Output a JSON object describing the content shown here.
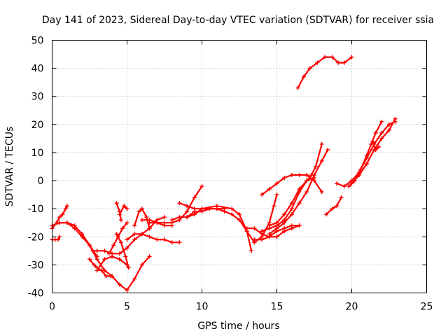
{
  "chart_data": {
    "type": "scatter",
    "title": "Day 141 of 2023, Sidereal Day-to-day VTEC variation (SDTVAR) for receiver ssia",
    "xlabel": "GPS time / hours",
    "ylabel": "SDTVAR / TECUs",
    "xlim": [
      0,
      25
    ],
    "ylim": [
      -40,
      50
    ],
    "xticks": [
      0,
      5,
      10,
      15,
      20,
      25
    ],
    "yticks": [
      -40,
      -30,
      -20,
      -10,
      0,
      10,
      20,
      30,
      40,
      50
    ],
    "grid": true,
    "marker": "+",
    "color": "#ff0000",
    "series": [
      {
        "x": [
          0.0,
          0.3,
          0.5,
          0.7,
          0.9,
          1.0
        ],
        "y": [
          -17,
          -15,
          -13,
          -12,
          -10,
          -9
        ]
      },
      {
        "x": [
          0.0,
          0.5,
          1.0,
          1.5,
          2.0,
          2.5,
          3.0
        ],
        "y": [
          -16,
          -15,
          -15,
          -17,
          -20,
          -23,
          -27
        ]
      },
      {
        "x": [
          0.0,
          0.2,
          0.4,
          0.5
        ],
        "y": [
          -21,
          -21,
          -21,
          -20
        ]
      },
      {
        "x": [
          0.5,
          1.0,
          1.5,
          2.0,
          2.5,
          3.0,
          3.5,
          4.0,
          4.5,
          5.0,
          5.5,
          6.0,
          6.5
        ],
        "y": [
          -15,
          -15,
          -16,
          -19,
          -23,
          -28,
          -32,
          -34,
          -37,
          -39,
          -35,
          -30,
          -27
        ]
      },
      {
        "x": [
          2.5,
          2.8,
          3.0,
          3.3,
          3.6,
          3.9
        ],
        "y": [
          -28,
          -30,
          -31,
          -32,
          -34,
          -34
        ]
      },
      {
        "x": [
          2.7,
          3.0,
          3.5,
          4.0,
          4.5,
          5.0,
          5.5,
          6.0,
          6.5,
          7.0,
          7.5,
          8.0,
          8.5
        ],
        "y": [
          -25,
          -25,
          -25,
          -26,
          -26,
          -24,
          -21,
          -19,
          -20,
          -21,
          -21,
          -22,
          -22
        ]
      },
      {
        "x": [
          3.0,
          3.5,
          4.0,
          4.5,
          5.0
        ],
        "y": [
          -32,
          -28,
          -27,
          -28,
          -30
        ]
      },
      {
        "x": [
          3.8,
          4.1,
          4.4,
          4.7,
          5.0
        ],
        "y": [
          -26,
          -23,
          -20,
          -17,
          -15
        ]
      },
      {
        "x": [
          4.3,
          4.6,
          4.9,
          5.1
        ],
        "y": [
          -19,
          -22,
          -27,
          -31
        ]
      },
      {
        "x": [
          4.3,
          4.5,
          4.6
        ],
        "y": [
          -8,
          -11,
          -14
        ]
      },
      {
        "x": [
          4.5,
          4.8,
          5.0
        ],
        "y": [
          -12,
          -9,
          -10
        ]
      },
      {
        "x": [
          5.0,
          5.5,
          6.0,
          6.5,
          7.0,
          7.5
        ],
        "y": [
          -21,
          -19,
          -19,
          -17,
          -14,
          -13
        ]
      },
      {
        "x": [
          5.5,
          5.8,
          6.0,
          6.3,
          6.5
        ],
        "y": [
          -16,
          -11,
          -10,
          -13,
          -17
        ]
      },
      {
        "x": [
          6.0,
          6.5,
          7.0,
          7.5,
          8.0
        ],
        "y": [
          -14,
          -14,
          -15,
          -16,
          -16
        ]
      },
      {
        "x": [
          6.5,
          7.0,
          7.5,
          8.0,
          8.5,
          9.0,
          9.5,
          10.0
        ],
        "y": [
          -15,
          -15,
          -15,
          -15,
          -14,
          -11,
          -6,
          -2
        ]
      },
      {
        "x": [
          8.0,
          8.5,
          9.0,
          9.5,
          10.0,
          10.5,
          11.0,
          11.5
        ],
        "y": [
          -14,
          -13,
          -13,
          -11,
          -11,
          -10,
          -10,
          -10
        ]
      },
      {
        "x": [
          8.5,
          9.0,
          9.5,
          10.0,
          10.5,
          11.0,
          11.5,
          12.0,
          12.5,
          13.0,
          13.5
        ],
        "y": [
          -8,
          -9,
          -10,
          -10,
          -10,
          -10,
          -11,
          -12,
          -14,
          -18,
          -22
        ]
      },
      {
        "x": [
          9.0,
          9.5,
          10.0,
          11.0,
          12.0,
          12.5,
          13.0,
          13.3
        ],
        "y": [
          -13,
          -12,
          -10,
          -9,
          -10,
          -12,
          -18,
          -25
        ]
      },
      {
        "x": [
          13.0,
          13.5,
          14.0,
          14.5,
          15.0,
          15.5,
          16.0,
          16.5
        ],
        "y": [
          -17,
          -17,
          -19,
          -20,
          -20,
          -18,
          -17,
          -16
        ]
      },
      {
        "x": [
          13.5,
          14.0,
          14.5,
          15.0,
          15.5,
          16.0,
          16.5
        ],
        "y": [
          -21,
          -21,
          -20,
          -18,
          -17,
          -16,
          -16
        ]
      },
      {
        "x": [
          14.0,
          14.5,
          15.0,
          15.5,
          16.0,
          16.5,
          17.0,
          17.3,
          17.6,
          18.0
        ],
        "y": [
          -18,
          -17,
          -16,
          -14,
          -10,
          -4,
          0,
          2,
          5,
          13
        ]
      },
      {
        "x": [
          14.5,
          15.0,
          15.5,
          16.0,
          16.5,
          17.0,
          17.5,
          18.0,
          18.4
        ],
        "y": [
          -19,
          -17,
          -15,
          -12,
          -8,
          -4,
          2,
          7,
          11
        ]
      },
      {
        "x": [
          14.5,
          15.0,
          15.5,
          16.0,
          16.5,
          17.0,
          17.5
        ],
        "y": [
          -16,
          -15,
          -12,
          -8,
          -3,
          0,
          1
        ]
      },
      {
        "x": [
          13.5,
          14.0,
          14.5,
          14.8,
          15.0
        ],
        "y": [
          -22,
          -20,
          -15,
          -9,
          -5
        ]
      },
      {
        "x": [
          14.0,
          14.5,
          15.0,
          15.5,
          16.0,
          16.5,
          17.0,
          17.5,
          18.0
        ],
        "y": [
          -5,
          -3,
          -1,
          1,
          2,
          2,
          2,
          0,
          -4
        ]
      },
      {
        "x": [
          16.4,
          16.8,
          17.2,
          17.7,
          18.2,
          18.7,
          19.1,
          19.5,
          20.0
        ],
        "y": [
          33,
          37,
          40,
          42,
          44,
          44,
          42,
          42,
          44
        ]
      },
      {
        "x": [
          18.3,
          18.7,
          19.0,
          19.3
        ],
        "y": [
          -12,
          -10,
          -9,
          -6
        ]
      },
      {
        "x": [
          19.0,
          19.5,
          20.0,
          20.5,
          21.0,
          21.5,
          22.0,
          22.5,
          22.9
        ],
        "y": [
          -1,
          -2,
          0,
          3,
          8,
          13,
          17,
          20,
          21
        ]
      },
      {
        "x": [
          19.8,
          20.2,
          20.6,
          21.0,
          21.3,
          21.6,
          22.0
        ],
        "y": [
          -2,
          0,
          4,
          9,
          13,
          17,
          21
        ]
      },
      {
        "x": [
          20.0,
          20.5,
          21.0,
          21.5,
          22.0,
          22.5,
          22.9
        ],
        "y": [
          -1,
          2,
          6,
          11,
          15,
          18,
          22
        ]
      },
      {
        "x": [
          21.4,
          21.6,
          21.8
        ],
        "y": [
          14,
          11,
          12
        ]
      }
    ]
  }
}
